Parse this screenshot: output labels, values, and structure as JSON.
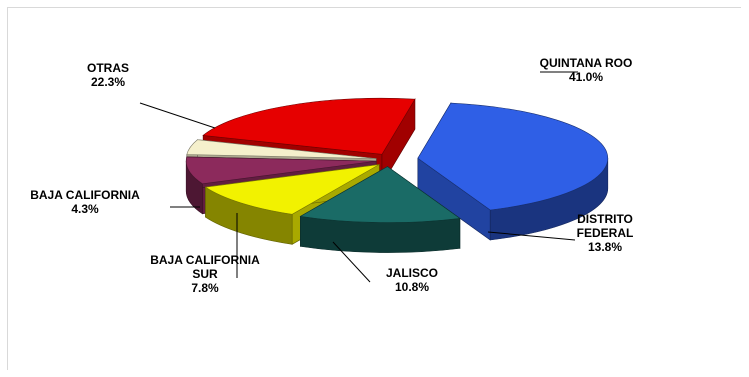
{
  "chart_data": {
    "type": "pie",
    "style": "3d-exploded",
    "title": "",
    "legend": "none",
    "slices": [
      {
        "name": "QUINTANA ROO",
        "label_lines": [
          "QUINTANA ROO"
        ],
        "value_label": "41.0%",
        "value": 41.0,
        "color": "#2f5fe6"
      },
      {
        "name": "DISTRITO FEDERAL",
        "label_lines": [
          "DISTRITO",
          "FEDERAL"
        ],
        "value_label": "13.8%",
        "value": 13.8,
        "color": "#1a6b66"
      },
      {
        "name": "JALISCO",
        "label_lines": [
          "JALISCO"
        ],
        "value_label": "10.8%",
        "value": 10.8,
        "color": "#f2f200"
      },
      {
        "name": "BAJA CALIFORNIA SUR",
        "label_lines": [
          "BAJA CALIFORNIA",
          "SUR"
        ],
        "value_label": "7.8%",
        "value": 7.8,
        "color": "#8c2a5c"
      },
      {
        "name": "BAJA CALIFORNIA",
        "label_lines": [
          "BAJA CALIFORNIA"
        ],
        "value_label": "4.3%",
        "value": 4.3,
        "color": "#f5f0cc"
      },
      {
        "name": "OTRAS",
        "label_lines": [
          "OTRAS"
        ],
        "value_label": "22.3%",
        "value": 22.3,
        "color": "#e60000"
      }
    ]
  }
}
